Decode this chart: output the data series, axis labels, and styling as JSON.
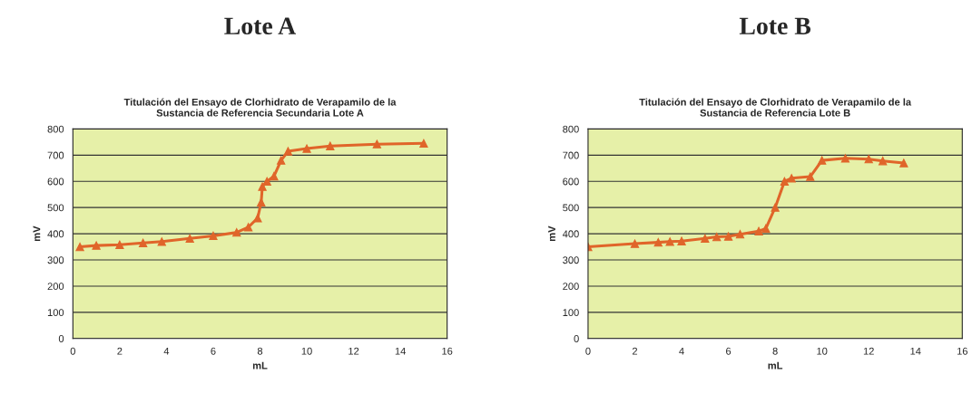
{
  "chart_data": [
    {
      "type": "line",
      "title": "Lote A",
      "subtitle": "Titulación del Ensayo de Clorhidrato de Verapamilo de la\nSustancia de Referencia Secundaria Lote A",
      "xlabel": "mL",
      "ylabel": "mV",
      "x": [
        0.3,
        1,
        2,
        3,
        3.8,
        5,
        6,
        7,
        7.5,
        7.9,
        8.05,
        8.1,
        8.3,
        8.6,
        8.9,
        9.2,
        10,
        11,
        13,
        15
      ],
      "series": [
        {
          "color": "#e0652a",
          "values": [
            350,
            355,
            358,
            365,
            370,
            382,
            392,
            405,
            425,
            460,
            520,
            580,
            600,
            620,
            680,
            715,
            725,
            735,
            742,
            745
          ]
        }
      ],
      "xlim": [
        0,
        16
      ],
      "xticks": [
        0,
        2,
        4,
        6,
        8,
        10,
        12,
        14,
        16
      ],
      "ylim": [
        0,
        800
      ],
      "yticks": [
        0,
        100,
        200,
        300,
        400,
        500,
        600,
        700,
        800
      ],
      "grid": "y",
      "marker": "triangle",
      "line_style": "solid"
    },
    {
      "type": "line",
      "title": "Lote B",
      "subtitle": "Titulación del Ensayo de Clorhidrato de Verapamilo de la\nSustancia de Referencia Lote B",
      "xlabel": "mL",
      "ylabel": "mV",
      "x": [
        0,
        2,
        3,
        3.5,
        4,
        5,
        5.5,
        6,
        6.5,
        7.3,
        7.6,
        8,
        8.4,
        8.7,
        9.5,
        10,
        11,
        12,
        12.6,
        13.5
      ],
      "series": [
        {
          "color": "#e0652a",
          "values": [
            350,
            362,
            367,
            370,
            372,
            382,
            388,
            390,
            398,
            410,
            420,
            500,
            600,
            612,
            618,
            680,
            688,
            685,
            678,
            670
          ]
        }
      ],
      "xlim": [
        0,
        16
      ],
      "xticks": [
        0,
        2,
        4,
        6,
        8,
        10,
        12,
        14,
        16
      ],
      "ylim": [
        0,
        800
      ],
      "yticks": [
        0,
        100,
        200,
        300,
        400,
        500,
        600,
        700,
        800
      ],
      "grid": "y",
      "marker": "triangle",
      "line_style": "solid"
    }
  ]
}
